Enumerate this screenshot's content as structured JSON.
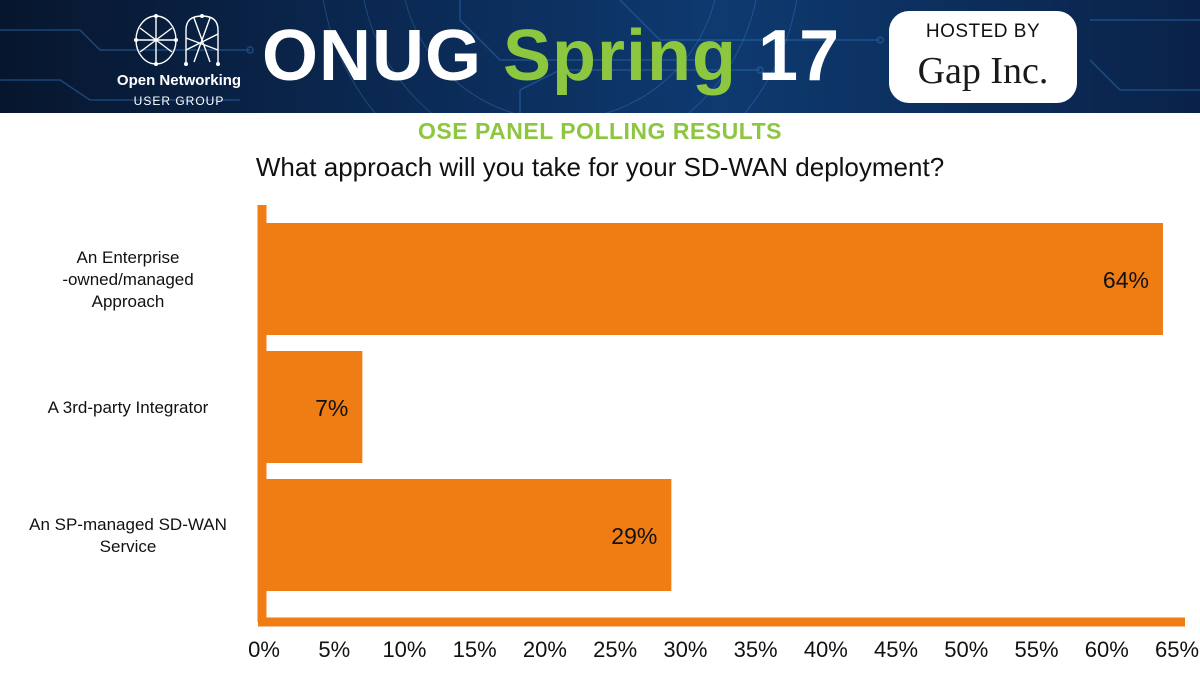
{
  "header": {
    "org_name": "Open Networking",
    "org_subtitle": "USER GROUP",
    "event_name": "ONUG",
    "event_season": "Spring",
    "event_year": "17",
    "host_label": "HOSTED BY",
    "host_name": "Gap Inc."
  },
  "poll": {
    "heading": "OSE PANEL POLLING RESULTS",
    "question": "What approach will you take for your SD-WAN deployment?"
  },
  "colors": {
    "bar": "#f07c14",
    "axis": "#f07c14",
    "heading_green": "#8dc63f"
  },
  "chart_data": {
    "type": "bar",
    "orientation": "horizontal",
    "categories": [
      [
        "An Enterprise",
        "-owned/managed",
        "Approach"
      ],
      [
        "A 3rd-party Integrator"
      ],
      [
        "An SP-managed SD-WAN",
        "Service"
      ]
    ],
    "values": [
      64,
      7,
      29
    ],
    "data_labels": [
      "64%",
      "7%",
      "29%"
    ],
    "xlim": [
      0,
      65
    ],
    "xticks": [
      "0%",
      "5%",
      "10%",
      "15%",
      "20%",
      "25%",
      "30%",
      "35%",
      "40%",
      "45%",
      "50%",
      "55%",
      "60%",
      "65%"
    ],
    "grid": false,
    "legend": "none"
  }
}
